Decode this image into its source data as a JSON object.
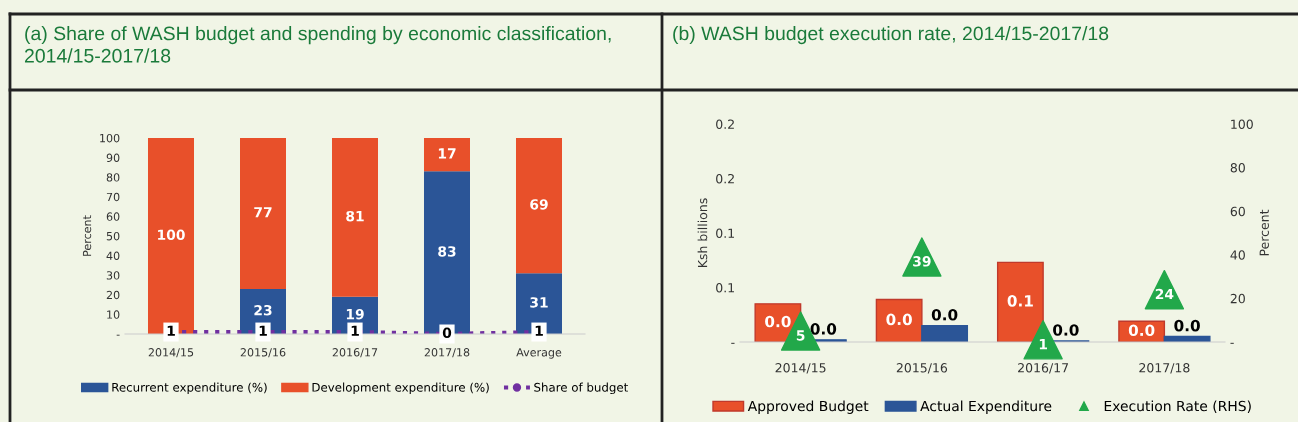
{
  "chart_data": [
    {
      "type": "bar",
      "title": "(a) Share of WASH budget and spending by economic classification, 2014/15-2017/18",
      "ylabel": "Percent",
      "stacked": true,
      "legend": "bottom",
      "categories": [
        "2014/15",
        "2015/16",
        "2016/17",
        "2017/18",
        "Average"
      ],
      "ylim": [
        0,
        100
      ],
      "yticks": [
        {
          "value": 0,
          "label": "-"
        },
        10,
        20,
        30,
        40,
        50,
        60,
        70,
        80,
        90,
        100
      ],
      "series": [
        {
          "name": "Recurrent expenditure (%)",
          "color": "#2b5597",
          "values": [
            0,
            23,
            19,
            83,
            31
          ],
          "value_labels": [
            null,
            "23",
            "19",
            "83",
            "31"
          ]
        },
        {
          "name": "Development expenditure (%)",
          "color": "#e8502a",
          "values": [
            100,
            77,
            81,
            17,
            69
          ],
          "value_labels": [
            "100",
            "77",
            "81",
            "17",
            "69"
          ]
        },
        {
          "name": "Share of budget",
          "type": "line",
          "line_style": "dotted",
          "marker": "circle",
          "color": "#7030a0",
          "values": [
            1,
            1,
            1,
            0,
            1
          ],
          "value_labels": [
            "1",
            "1",
            "1",
            "0",
            "1"
          ]
        }
      ]
    },
    {
      "type": "bar",
      "title": "(b) WASH budget execution rate, 2014/15-2017/18",
      "ylabel": "Ksh billions",
      "y2label": "Percent",
      "legend": "bottom",
      "categories": [
        "2014/15",
        "2015/16",
        "2016/17",
        "2017/18"
      ],
      "ylim": [
        0,
        0.2
      ],
      "yticks": [
        {
          "value": 0,
          "label": "-"
        },
        {
          "value": 0.05,
          "label": "0.1"
        },
        {
          "value": 0.1,
          "label": "0.1"
        },
        {
          "value": 0.15,
          "label": "0.2"
        },
        {
          "value": 0.2,
          "label": "0.2"
        }
      ],
      "y2lim": [
        0,
        100
      ],
      "y2ticks": [
        {
          "value": 0,
          "label": "-"
        },
        20,
        40,
        60,
        80,
        100
      ],
      "series": [
        {
          "name": "Approved Budget",
          "color": "#e8502a",
          "values": [
            0.035,
            0.039,
            0.073,
            0.019
          ],
          "value_labels": [
            "0.0",
            "0.0",
            "0.1",
            "0.0"
          ]
        },
        {
          "name": "Actual Expenditure",
          "color": "#2b5597",
          "values": [
            0.002,
            0.015,
            0.001,
            0.005
          ],
          "value_labels": [
            "0.0",
            "0.0",
            "0.0",
            "0.0"
          ]
        },
        {
          "name": "Execution Rate (RHS)",
          "type": "scatter",
          "axis": "y2",
          "marker": "triangle",
          "color": "#22a84a",
          "values": [
            5,
            39,
            1,
            24
          ],
          "value_labels": [
            "5",
            "39",
            "1",
            "24"
          ]
        }
      ]
    }
  ]
}
